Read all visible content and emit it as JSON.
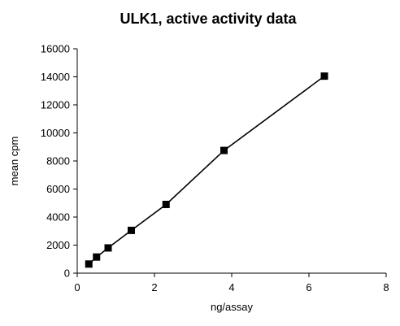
{
  "chart_data": {
    "type": "line",
    "title": "ULK1, active activity data",
    "xlabel": "ng/assay",
    "ylabel": "mean cpm",
    "xlim": [
      0,
      8
    ],
    "ylim": [
      0,
      16000
    ],
    "xticks": [
      0,
      2,
      4,
      6,
      8
    ],
    "yticks": [
      0,
      2000,
      4000,
      6000,
      8000,
      10000,
      12000,
      14000,
      16000
    ],
    "grid": false,
    "legend": "none",
    "series": [
      {
        "x": [
          0.3,
          0.5,
          0.8,
          1.4,
          2.3,
          3.8,
          6.4
        ],
        "y": [
          650,
          1150,
          1800,
          3050,
          4900,
          8750,
          14050
        ],
        "marker": "square",
        "color": "#000000"
      }
    ]
  }
}
